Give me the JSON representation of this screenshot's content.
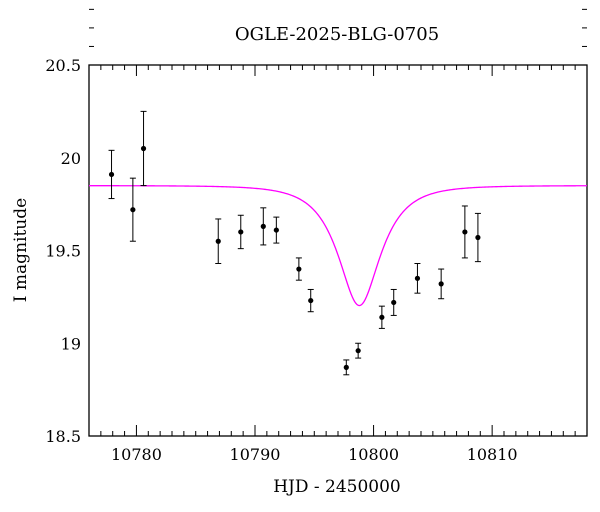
{
  "chart_data": {
    "type": "scatter",
    "title": "OGLE-2025-BLG-0705",
    "xlabel": "HJD - 2450000",
    "ylabel": "I magnitude",
    "xlim": [
      10776,
      10818
    ],
    "ylim": [
      20.5,
      18.5
    ],
    "y_inverted": true,
    "grid": false,
    "x_ticks": [
      10780,
      10790,
      10800,
      10810
    ],
    "x_tick_labels": [
      "10780",
      "10790",
      "10800",
      "10810"
    ],
    "y_ticks": [
      18.5,
      19,
      19.5,
      20,
      20.5
    ],
    "y_tick_labels": [
      "18.5",
      "19",
      "19.5",
      "20",
      "20.5"
    ],
    "series": [
      {
        "kind": "points_with_errorbars",
        "color": "#000000",
        "x": [
          10777.9,
          10779.7,
          10780.6,
          10786.9,
          10788.8,
          10790.7,
          10791.8,
          10793.7,
          10794.7,
          10797.7,
          10798.7,
          10800.7,
          10801.7,
          10803.7,
          10805.7,
          10807.7,
          10808.8
        ],
        "y": [
          19.91,
          19.72,
          20.05,
          19.55,
          19.6,
          19.63,
          19.61,
          19.4,
          19.23,
          18.87,
          18.96,
          19.14,
          19.22,
          19.35,
          19.32,
          19.6,
          19.57
        ],
        "err": [
          0.13,
          0.17,
          0.2,
          0.12,
          0.09,
          0.1,
          0.07,
          0.06,
          0.06,
          0.04,
          0.04,
          0.06,
          0.07,
          0.08,
          0.08,
          0.14,
          0.13
        ]
      },
      {
        "kind": "model_curve",
        "color": "#ff00ff",
        "model": "point-lens",
        "t0": 10798.8,
        "tE": 3.0,
        "u0": 0.55,
        "baseline_mag": 19.85,
        "blend_fraction": 0.8
      }
    ]
  }
}
